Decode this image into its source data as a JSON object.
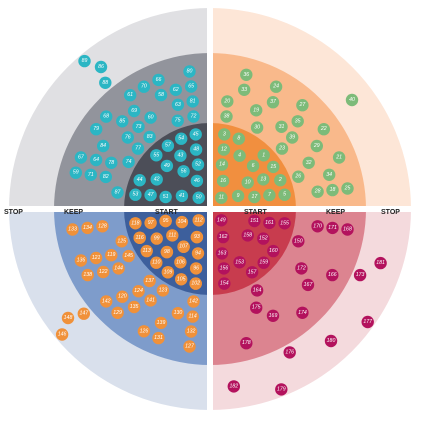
{
  "labels": {
    "stop_left": "STOP",
    "keep_left": "KEEP",
    "start_left": "START",
    "start_right": "START",
    "keep_right": "KEEP",
    "stop_right": "STOP"
  },
  "quadrants": [
    {
      "name": "top-left",
      "colors": {
        "outer": "#e0e0e3",
        "middle": "#92949c",
        "inner": "#4c4e58",
        "dot": "#2bb6c4"
      },
      "items": [
        {
          "n": 88,
          "zone": "stop"
        },
        {
          "n": 86,
          "zone": "stop"
        },
        {
          "n": 89,
          "zone": "stop"
        },
        {
          "n": 87,
          "zone": "keep"
        },
        {
          "n": 74,
          "zone": "keep"
        },
        {
          "n": 77,
          "zone": "keep"
        },
        {
          "n": 83,
          "zone": "keep"
        },
        {
          "n": 75,
          "zone": "keep"
        },
        {
          "n": 72,
          "zone": "keep"
        },
        {
          "n": 82,
          "zone": "keep"
        },
        {
          "n": 78,
          "zone": "keep"
        },
        {
          "n": 76,
          "zone": "keep"
        },
        {
          "n": 73,
          "zone": "keep"
        },
        {
          "n": 60,
          "zone": "keep"
        },
        {
          "n": 63,
          "zone": "keep"
        },
        {
          "n": 81,
          "zone": "keep"
        },
        {
          "n": 71,
          "zone": "keep"
        },
        {
          "n": 64,
          "zone": "keep"
        },
        {
          "n": 84,
          "zone": "keep"
        },
        {
          "n": 85,
          "zone": "keep"
        },
        {
          "n": 69,
          "zone": "keep"
        },
        {
          "n": 58,
          "zone": "keep"
        },
        {
          "n": 62,
          "zone": "keep"
        },
        {
          "n": 65,
          "zone": "keep"
        },
        {
          "n": 59,
          "zone": "keep"
        },
        {
          "n": 67,
          "zone": "keep"
        },
        {
          "n": 79,
          "zone": "keep"
        },
        {
          "n": 68,
          "zone": "keep"
        },
        {
          "n": 61,
          "zone": "keep"
        },
        {
          "n": 70,
          "zone": "keep"
        },
        {
          "n": 66,
          "zone": "keep"
        },
        {
          "n": 80,
          "zone": "keep"
        },
        {
          "n": 50,
          "zone": "start"
        },
        {
          "n": 41,
          "zone": "start"
        },
        {
          "n": 46,
          "zone": "start"
        },
        {
          "n": 51,
          "zone": "start"
        },
        {
          "n": 56,
          "zone": "start"
        },
        {
          "n": 52,
          "zone": "start"
        },
        {
          "n": 47,
          "zone": "start"
        },
        {
          "n": 42,
          "zone": "start"
        },
        {
          "n": 49,
          "zone": "start"
        },
        {
          "n": 43,
          "zone": "start"
        },
        {
          "n": 48,
          "zone": "start"
        },
        {
          "n": 53,
          "zone": "start"
        },
        {
          "n": 44,
          "zone": "start"
        },
        {
          "n": 55,
          "zone": "start"
        },
        {
          "n": 57,
          "zone": "start"
        },
        {
          "n": 54,
          "zone": "start"
        },
        {
          "n": 45,
          "zone": "start"
        }
      ]
    },
    {
      "name": "top-right",
      "colors": {
        "outer": "#fde6d7",
        "middle": "#f9b98b",
        "inner": "#f18f3f",
        "dot": "#7dbb79"
      },
      "items": [
        {
          "n": 40,
          "zone": "stop"
        },
        {
          "n": 38,
          "zone": "keep"
        },
        {
          "n": 30,
          "zone": "keep"
        },
        {
          "n": 23,
          "zone": "keep"
        },
        {
          "n": 26,
          "zone": "keep"
        },
        {
          "n": 20,
          "zone": "keep"
        },
        {
          "n": 19,
          "zone": "keep"
        },
        {
          "n": 31,
          "zone": "keep"
        },
        {
          "n": 39,
          "zone": "keep"
        },
        {
          "n": 32,
          "zone": "keep"
        },
        {
          "n": 28,
          "zone": "keep"
        },
        {
          "n": 33,
          "zone": "keep"
        },
        {
          "n": 37,
          "zone": "keep"
        },
        {
          "n": 35,
          "zone": "keep"
        },
        {
          "n": 29,
          "zone": "keep"
        },
        {
          "n": 34,
          "zone": "keep"
        },
        {
          "n": 18,
          "zone": "keep"
        },
        {
          "n": 36,
          "zone": "keep"
        },
        {
          "n": 24,
          "zone": "keep"
        },
        {
          "n": 27,
          "zone": "keep"
        },
        {
          "n": 22,
          "zone": "keep"
        },
        {
          "n": 21,
          "zone": "keep"
        },
        {
          "n": 25,
          "zone": "keep"
        },
        {
          "n": 11,
          "zone": "start"
        },
        {
          "n": 16,
          "zone": "start"
        },
        {
          "n": 9,
          "zone": "start"
        },
        {
          "n": 14,
          "zone": "start"
        },
        {
          "n": 10,
          "zone": "start"
        },
        {
          "n": 17,
          "zone": "start"
        },
        {
          "n": 12,
          "zone": "start"
        },
        {
          "n": 4,
          "zone": "start"
        },
        {
          "n": 6,
          "zone": "start"
        },
        {
          "n": 13,
          "zone": "start"
        },
        {
          "n": 7,
          "zone": "start"
        },
        {
          "n": 3,
          "zone": "start"
        },
        {
          "n": 8,
          "zone": "start"
        },
        {
          "n": 1,
          "zone": "start"
        },
        {
          "n": 15,
          "zone": "start"
        },
        {
          "n": 2,
          "zone": "start"
        },
        {
          "n": 5,
          "zone": "start"
        }
      ]
    },
    {
      "name": "bottom-left",
      "colors": {
        "outer": "#d9e0ec",
        "middle": "#7e9ccb",
        "inner": "#3d5f9c",
        "dot": "#f0913a"
      },
      "items": [
        {
          "n": 147,
          "zone": "stop"
        },
        {
          "n": 148,
          "zone": "stop"
        },
        {
          "n": 146,
          "zone": "stop"
        },
        {
          "n": 142,
          "zone": "keep"
        },
        {
          "n": 123,
          "zone": "keep"
        },
        {
          "n": 137,
          "zone": "keep"
        },
        {
          "n": 145,
          "zone": "keep"
        },
        {
          "n": 125,
          "zone": "keep"
        },
        {
          "n": 114,
          "zone": "keep"
        },
        {
          "n": 130,
          "zone": "keep"
        },
        {
          "n": 141,
          "zone": "keep"
        },
        {
          "n": 124,
          "zone": "keep"
        },
        {
          "n": 144,
          "zone": "keep"
        },
        {
          "n": 119,
          "zone": "keep"
        },
        {
          "n": 128,
          "zone": "keep"
        },
        {
          "n": 132,
          "zone": "keep"
        },
        {
          "n": 139,
          "zone": "keep"
        },
        {
          "n": 135,
          "zone": "keep"
        },
        {
          "n": 120,
          "zone": "keep"
        },
        {
          "n": 122,
          "zone": "keep"
        },
        {
          "n": 121,
          "zone": "keep"
        },
        {
          "n": 134,
          "zone": "keep"
        },
        {
          "n": 127,
          "zone": "keep"
        },
        {
          "n": 131,
          "zone": "keep"
        },
        {
          "n": 126,
          "zone": "keep"
        },
        {
          "n": 129,
          "zone": "keep"
        },
        {
          "n": 142,
          "zone": "keep"
        },
        {
          "n": 138,
          "zone": "keep"
        },
        {
          "n": 136,
          "zone": "keep"
        },
        {
          "n": 133,
          "zone": "keep"
        },
        {
          "n": 112,
          "zone": "start"
        },
        {
          "n": 90,
          "zone": "start"
        },
        {
          "n": 93,
          "zone": "start"
        },
        {
          "n": 104,
          "zone": "start"
        },
        {
          "n": 94,
          "zone": "start"
        },
        {
          "n": 103,
          "zone": "start"
        },
        {
          "n": 107,
          "zone": "start"
        },
        {
          "n": 111,
          "zone": "start"
        },
        {
          "n": 117,
          "zone": "start"
        },
        {
          "n": 95,
          "zone": "start"
        },
        {
          "n": 96,
          "zone": "start"
        },
        {
          "n": 106,
          "zone": "start"
        },
        {
          "n": 100,
          "zone": "start"
        },
        {
          "n": 98,
          "zone": "start"
        },
        {
          "n": 99,
          "zone": "start"
        },
        {
          "n": 97,
          "zone": "start"
        },
        {
          "n": 101,
          "zone": "start"
        },
        {
          "n": 102,
          "zone": "start"
        },
        {
          "n": 105,
          "zone": "start"
        },
        {
          "n": 108,
          "zone": "start"
        },
        {
          "n": 109,
          "zone": "start"
        },
        {
          "n": 110,
          "zone": "start"
        },
        {
          "n": 113,
          "zone": "start"
        },
        {
          "n": 115,
          "zone": "start"
        },
        {
          "n": 116,
          "zone": "start"
        },
        {
          "n": 118,
          "zone": "start"
        }
      ]
    },
    {
      "name": "bottom-right",
      "colors": {
        "outer": "#f4dadd",
        "middle": "#dc8490",
        "inner": "#c83c4e",
        "dot": "#b3125d"
      },
      "items": [
        {
          "n": 173,
          "zone": "stop"
        },
        {
          "n": 176,
          "zone": "stop"
        },
        {
          "n": 181,
          "zone": "stop"
        },
        {
          "n": 180,
          "zone": "stop"
        },
        {
          "n": 182,
          "zone": "stop"
        },
        {
          "n": 177,
          "zone": "stop"
        },
        {
          "n": 179,
          "zone": "stop"
        },
        {
          "n": 150,
          "zone": "keep"
        },
        {
          "n": 164,
          "zone": "keep"
        },
        {
          "n": 170,
          "zone": "keep"
        },
        {
          "n": 172,
          "zone": "keep"
        },
        {
          "n": 175,
          "zone": "keep"
        },
        {
          "n": 171,
          "zone": "keep"
        },
        {
          "n": 167,
          "zone": "keep"
        },
        {
          "n": 169,
          "zone": "keep"
        },
        {
          "n": 168,
          "zone": "keep"
        },
        {
          "n": 166,
          "zone": "keep"
        },
        {
          "n": 174,
          "zone": "keep"
        },
        {
          "n": 178,
          "zone": "keep"
        },
        {
          "n": 149,
          "zone": "start"
        },
        {
          "n": 162,
          "zone": "start"
        },
        {
          "n": 151,
          "zone": "start"
        },
        {
          "n": 158,
          "zone": "start"
        },
        {
          "n": 163,
          "zone": "start"
        },
        {
          "n": 161,
          "zone": "start"
        },
        {
          "n": 152,
          "zone": "start"
        },
        {
          "n": 153,
          "zone": "start"
        },
        {
          "n": 156,
          "zone": "start"
        },
        {
          "n": 155,
          "zone": "start"
        },
        {
          "n": 160,
          "zone": "start"
        },
        {
          "n": 159,
          "zone": "start"
        },
        {
          "n": 157,
          "zone": "start"
        },
        {
          "n": 154,
          "zone": "start"
        }
      ]
    }
  ]
}
